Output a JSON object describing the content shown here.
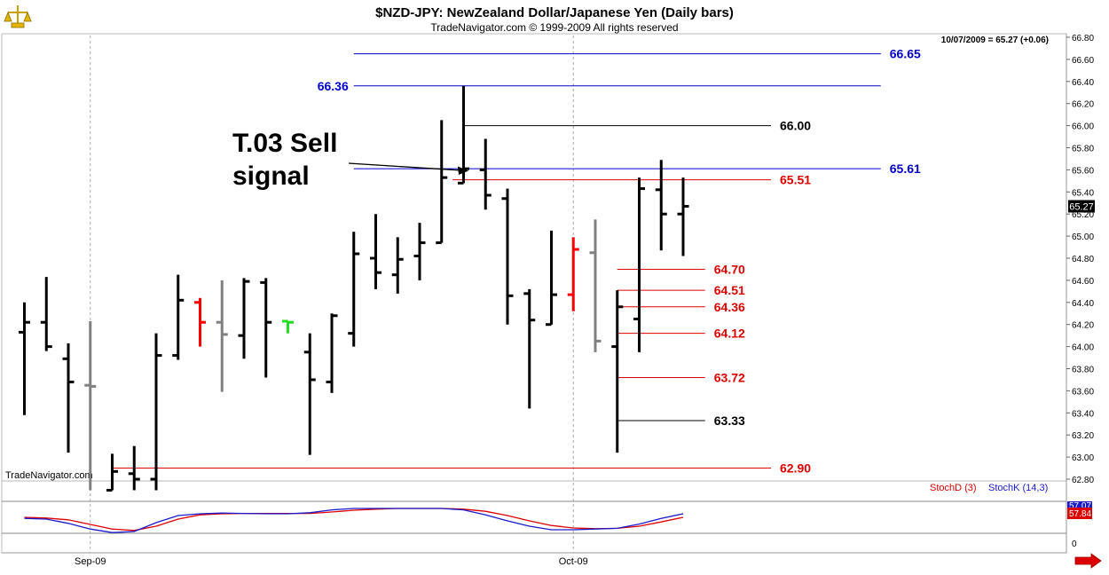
{
  "header": {
    "title": "$NZD-JPY:  NewZealand Dollar/Japanese Yen  (Daily bars)",
    "subtitle": "TradeNavigator.com © 1999-2009 All rights reserved",
    "last_quote": "10/07/2009 = 65.27 (+0.06)",
    "watermark": "TradeNavigator.com"
  },
  "annotation": {
    "line1": "T.03 Sell",
    "line2": "signal"
  },
  "colors": {
    "up_bar": "#000000",
    "neutral_bar": "#808080",
    "signal_bar": "#ff0000",
    "level_blue": "#0000cc",
    "level_red": "#dd0000",
    "level_black": "#000000",
    "stoch_d": "#dd0000",
    "stoch_k": "#1a1acc",
    "price_tag_bg": "#000000"
  },
  "chart_data": [
    {
      "type": "ohlc",
      "title": "$NZD-JPY:  NewZealand Dollar/Japanese Yen  (Daily bars)",
      "ylim": [
        62.7,
        66.9
      ],
      "yticks": [
        "66.80",
        "66.60",
        "66.40",
        "66.20",
        "66.00",
        "65.80",
        "65.60",
        "65.40",
        "65.20",
        "65.00",
        "64.80",
        "64.60",
        "64.40",
        "64.20",
        "64.00",
        "63.80",
        "63.60",
        "63.40",
        "63.20",
        "63.00",
        "62.80"
      ],
      "current_price": "65.27",
      "x_labels": [
        {
          "label": "Sep-09",
          "bar_index": 3
        },
        {
          "label": "Oct-09",
          "bar_index": 25
        }
      ],
      "bars": [
        {
          "o": 64.13,
          "h": 64.4,
          "l": 63.38,
          "c": 64.22,
          "color": "black"
        },
        {
          "o": 64.22,
          "h": 64.63,
          "l": 63.96,
          "c": 64.0,
          "color": "black"
        },
        {
          "o": 63.89,
          "h": 64.03,
          "l": 63.04,
          "c": 63.68,
          "color": "black"
        },
        {
          "o": 63.65,
          "h": 64.23,
          "l": 62.7,
          "c": 63.64,
          "color": "gray"
        },
        {
          "o": 62.7,
          "h": 63.03,
          "l": 62.7,
          "c": 62.87,
          "color": "black"
        },
        {
          "o": 62.85,
          "h": 63.1,
          "l": 62.7,
          "c": 62.8,
          "color": "black"
        },
        {
          "o": 62.8,
          "h": 64.12,
          "l": 62.7,
          "c": 63.92,
          "color": "black"
        },
        {
          "o": 63.92,
          "h": 64.65,
          "l": 63.88,
          "c": 64.42,
          "color": "black"
        },
        {
          "o": 64.4,
          "h": 64.44,
          "l": 64.0,
          "c": 64.22,
          "color": "red"
        },
        {
          "o": 64.22,
          "h": 64.6,
          "l": 63.59,
          "c": 64.11,
          "color": "gray"
        },
        {
          "o": 64.1,
          "h": 64.62,
          "l": 63.89,
          "c": 64.59,
          "color": "black"
        },
        {
          "o": 64.58,
          "h": 64.62,
          "l": 63.72,
          "c": 64.22,
          "color": "black"
        },
        {
          "o": 64.23,
          "h": 64.22,
          "l": 64.12,
          "c": 64.22,
          "color": "green"
        },
        {
          "o": 63.95,
          "h": 64.12,
          "l": 63.02,
          "c": 63.7,
          "color": "black"
        },
        {
          "o": 63.68,
          "h": 64.3,
          "l": 63.58,
          "c": 64.28,
          "color": "black"
        },
        {
          "o": 64.12,
          "h": 65.04,
          "l": 64.0,
          "c": 64.84,
          "color": "black"
        },
        {
          "o": 64.8,
          "h": 65.2,
          "l": 64.52,
          "c": 64.67,
          "color": "black"
        },
        {
          "o": 64.65,
          "h": 64.99,
          "l": 64.48,
          "c": 64.79,
          "color": "black"
        },
        {
          "o": 64.82,
          "h": 65.12,
          "l": 64.6,
          "c": 64.94,
          "color": "black"
        },
        {
          "o": 64.94,
          "h": 66.05,
          "l": 64.94,
          "c": 65.53,
          "color": "black"
        },
        {
          "o": 65.48,
          "h": 66.36,
          "l": 65.48,
          "c": 65.61,
          "color": "black"
        },
        {
          "o": 65.6,
          "h": 65.88,
          "l": 65.24,
          "c": 65.37,
          "color": "black"
        },
        {
          "o": 65.34,
          "h": 65.43,
          "l": 64.2,
          "c": 64.46,
          "color": "black"
        },
        {
          "o": 64.48,
          "h": 64.52,
          "l": 63.44,
          "c": 64.24,
          "color": "black"
        },
        {
          "o": 64.2,
          "h": 65.05,
          "l": 64.2,
          "c": 64.47,
          "color": "black"
        },
        {
          "o": 64.47,
          "h": 64.99,
          "l": 64.32,
          "c": 64.88,
          "color": "red"
        },
        {
          "o": 64.85,
          "h": 65.15,
          "l": 63.95,
          "c": 64.05,
          "color": "gray"
        },
        {
          "o": 64.0,
          "h": 64.51,
          "l": 63.04,
          "c": 64.36,
          "color": "black"
        },
        {
          "o": 64.25,
          "h": 65.53,
          "l": 63.95,
          "c": 65.43,
          "color": "black"
        },
        {
          "o": 65.42,
          "h": 65.69,
          "l": 64.87,
          "c": 65.2,
          "color": "black"
        },
        {
          "o": 65.2,
          "h": 65.53,
          "l": 64.82,
          "c": 65.27,
          "color": "black"
        }
      ],
      "levels": [
        {
          "value": 66.65,
          "label": "66.65",
          "color": "blue",
          "label_side": "right",
          "from_bar": 15,
          "to_bar": 39
        },
        {
          "value": 66.36,
          "label": "66.36",
          "color": "blue",
          "label_side": "left",
          "from_bar": 15,
          "to_bar": 39
        },
        {
          "value": 66.0,
          "label": "66.00",
          "color": "black",
          "label_side": "right",
          "from_bar": 20,
          "to_bar": 34
        },
        {
          "value": 65.61,
          "label": "65.61",
          "color": "blue",
          "label_side": "right",
          "from_bar": 15,
          "to_bar": 39
        },
        {
          "value": 65.51,
          "label": "65.51",
          "color": "red",
          "label_side": "right",
          "from_bar": 19.5,
          "to_bar": 34
        },
        {
          "value": 64.7,
          "label": "64.70",
          "color": "red",
          "label_side": "right",
          "from_bar": 27,
          "to_bar": 31
        },
        {
          "value": 64.51,
          "label": "64.51",
          "color": "red",
          "label_side": "right",
          "from_bar": 27,
          "to_bar": 31
        },
        {
          "value": 64.36,
          "label": "64.36",
          "color": "red",
          "label_side": "right",
          "from_bar": 27,
          "to_bar": 31
        },
        {
          "value": 64.12,
          "label": "64.12",
          "color": "red",
          "label_side": "right",
          "from_bar": 27,
          "to_bar": 31
        },
        {
          "value": 63.72,
          "label": "63.72",
          "color": "red",
          "label_side": "right",
          "from_bar": 27,
          "to_bar": 31
        },
        {
          "value": 63.33,
          "label": "63.33",
          "color": "black",
          "label_side": "right",
          "from_bar": 27,
          "to_bar": 31
        },
        {
          "value": 62.9,
          "label": "62.90",
          "color": "red",
          "label_side": "right",
          "from_bar": 4,
          "to_bar": 34
        }
      ]
    },
    {
      "type": "line",
      "series": [
        {
          "name": "StochD (3)",
          "values": [
            55,
            53,
            48,
            35,
            22,
            18,
            30,
            50,
            62,
            65,
            66,
            66,
            66,
            66,
            70,
            75,
            78,
            80,
            80,
            80,
            78,
            72,
            60,
            45,
            32,
            25,
            23,
            24,
            30,
            42,
            55
          ]
        },
        {
          "name": "StochK (14,3)",
          "values": [
            52,
            50,
            38,
            22,
            12,
            15,
            40,
            60,
            65,
            67,
            66,
            65,
            65,
            68,
            76,
            80,
            80,
            80,
            80,
            80,
            76,
            62,
            45,
            30,
            20,
            20,
            22,
            24,
            36,
            52,
            65
          ]
        }
      ],
      "ylim": [
        0,
        100
      ],
      "value_tags": [
        "57.07",
        "57.84"
      ],
      "zero_label": "0"
    }
  ]
}
